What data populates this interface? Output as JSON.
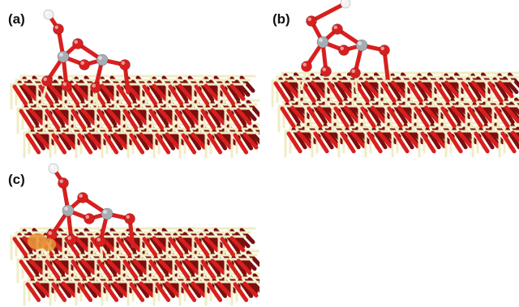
{
  "panels": [
    {
      "label": "(a)",
      "adsorbate": "two-carbon-complex",
      "hydroxyl": true,
      "charge_density_lobe": false
    },
    {
      "label": "(b)",
      "adsorbate": "two-carbon-complex",
      "hydroxyl": true,
      "charge_density_lobe": false
    },
    {
      "label": "(c)",
      "adsorbate": "two-carbon-complex",
      "hydroxyl": true,
      "charge_density_lobe": true
    }
  ],
  "colors": {
    "oxygen": "#d81f1f",
    "oxygen_dark": "#7a0f0f",
    "metal": "#f0ecc4",
    "metal_dark": "#b7b392",
    "carbon": "#a8adb3",
    "hydrogen": "#f2f2f2",
    "lobe": "#e8953a"
  }
}
